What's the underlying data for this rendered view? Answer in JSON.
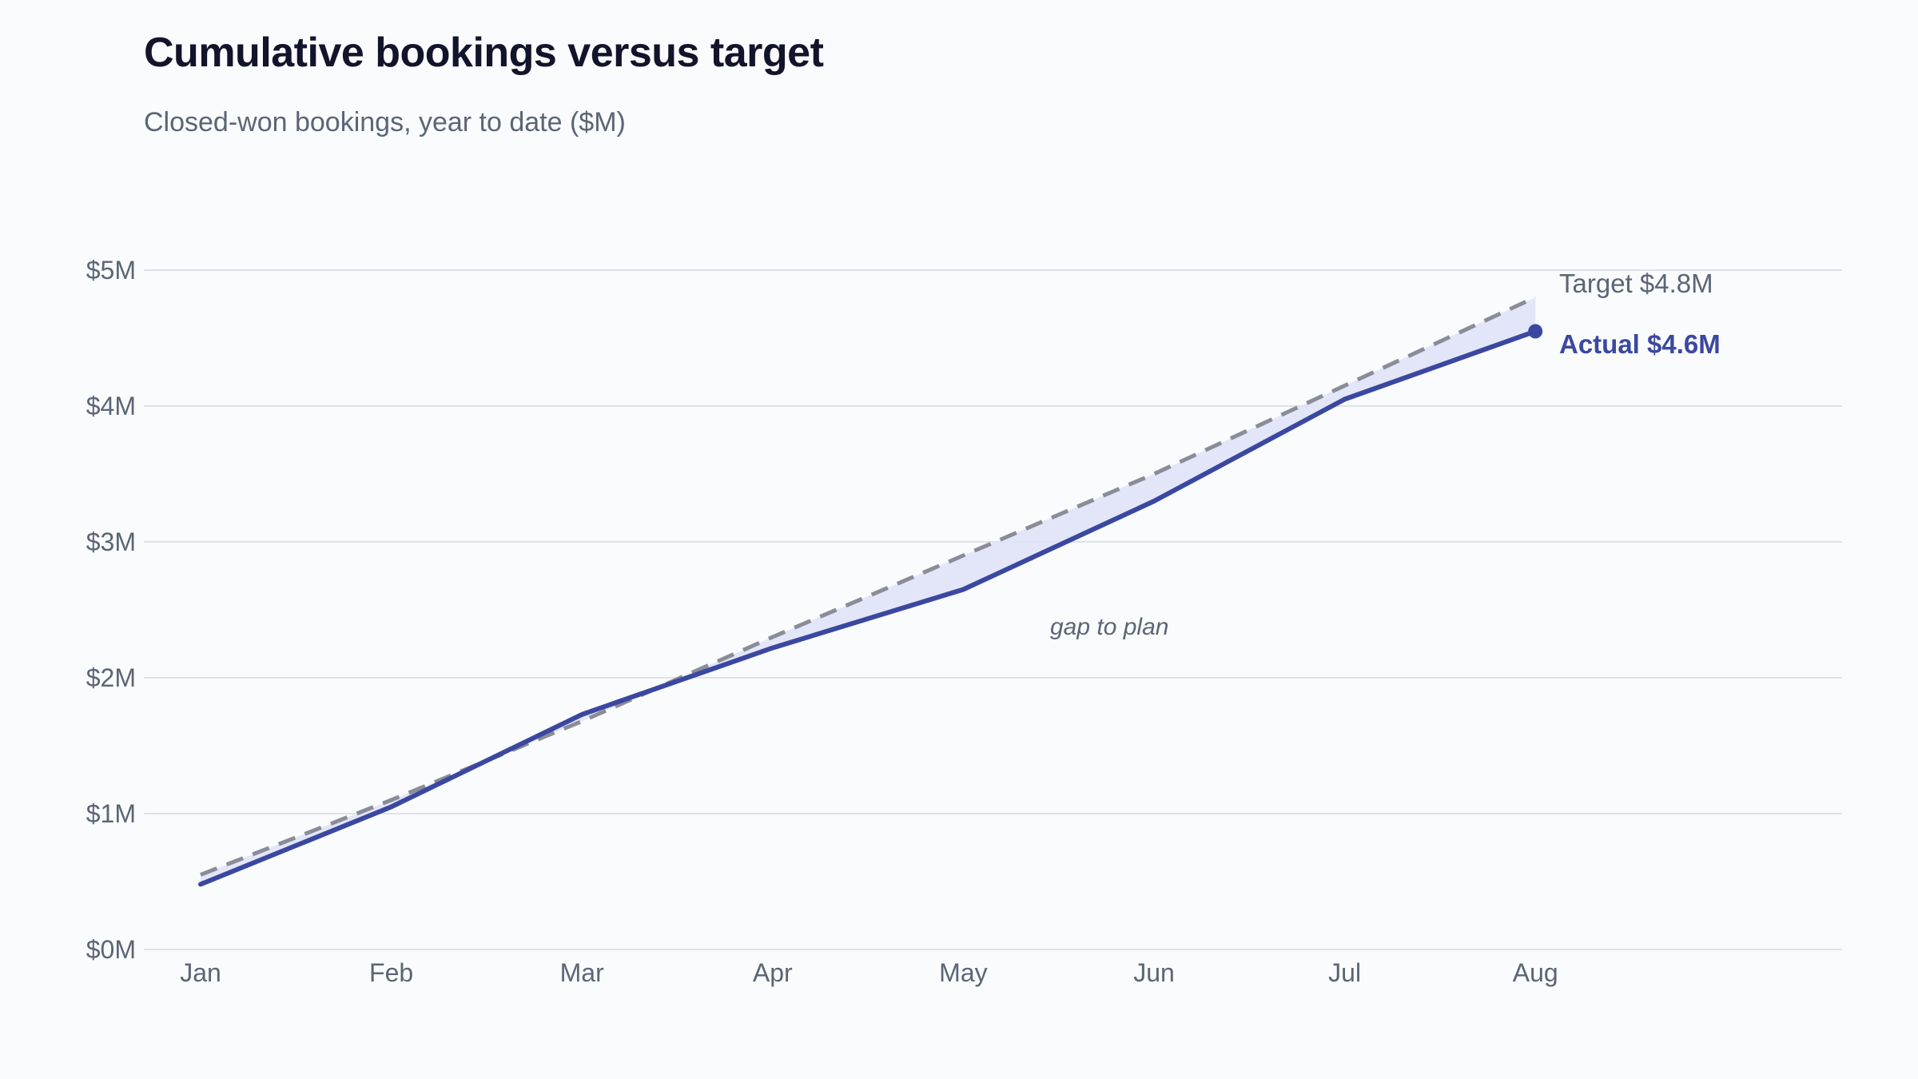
{
  "header": {
    "title": "Cumulative bookings versus target",
    "subtitle": "Closed-won bookings, year to date ($M)"
  },
  "colors": {
    "actual": "#3b48a0",
    "target": "#8a8d98",
    "gap_fill": "#dfe3f7",
    "grid": "#dfe2e8",
    "axis_text": "#5b6574"
  },
  "chart_data": {
    "type": "line",
    "categories": [
      "Jan",
      "Feb",
      "Mar",
      "Apr",
      "May",
      "Jun",
      "Jul",
      "Aug"
    ],
    "series": [
      {
        "key": "actual",
        "values": [
          0.48,
          1.05,
          1.73,
          2.22,
          2.65,
          3.3,
          4.05,
          4.55
        ],
        "style": "solid"
      },
      {
        "key": "target",
        "values": [
          0.55,
          1.1,
          1.68,
          2.3,
          2.9,
          3.5,
          4.15,
          4.8
        ],
        "style": "dashed"
      }
    ],
    "yticks": [
      {
        "value": 0,
        "label": "$0M"
      },
      {
        "value": 1,
        "label": "$1M"
      },
      {
        "value": 2,
        "label": "$2M"
      },
      {
        "value": 3,
        "label": "$3M"
      },
      {
        "value": 4,
        "label": "$4M"
      },
      {
        "value": 5,
        "label": "$5M"
      }
    ],
    "ylim": [
      0,
      5
    ],
    "grid": true,
    "gap_shaded": true,
    "annotations": {
      "target_label": "Target $4.8M",
      "actual_label": "Actual $4.6M",
      "gap_label": "gap to plan"
    }
  }
}
